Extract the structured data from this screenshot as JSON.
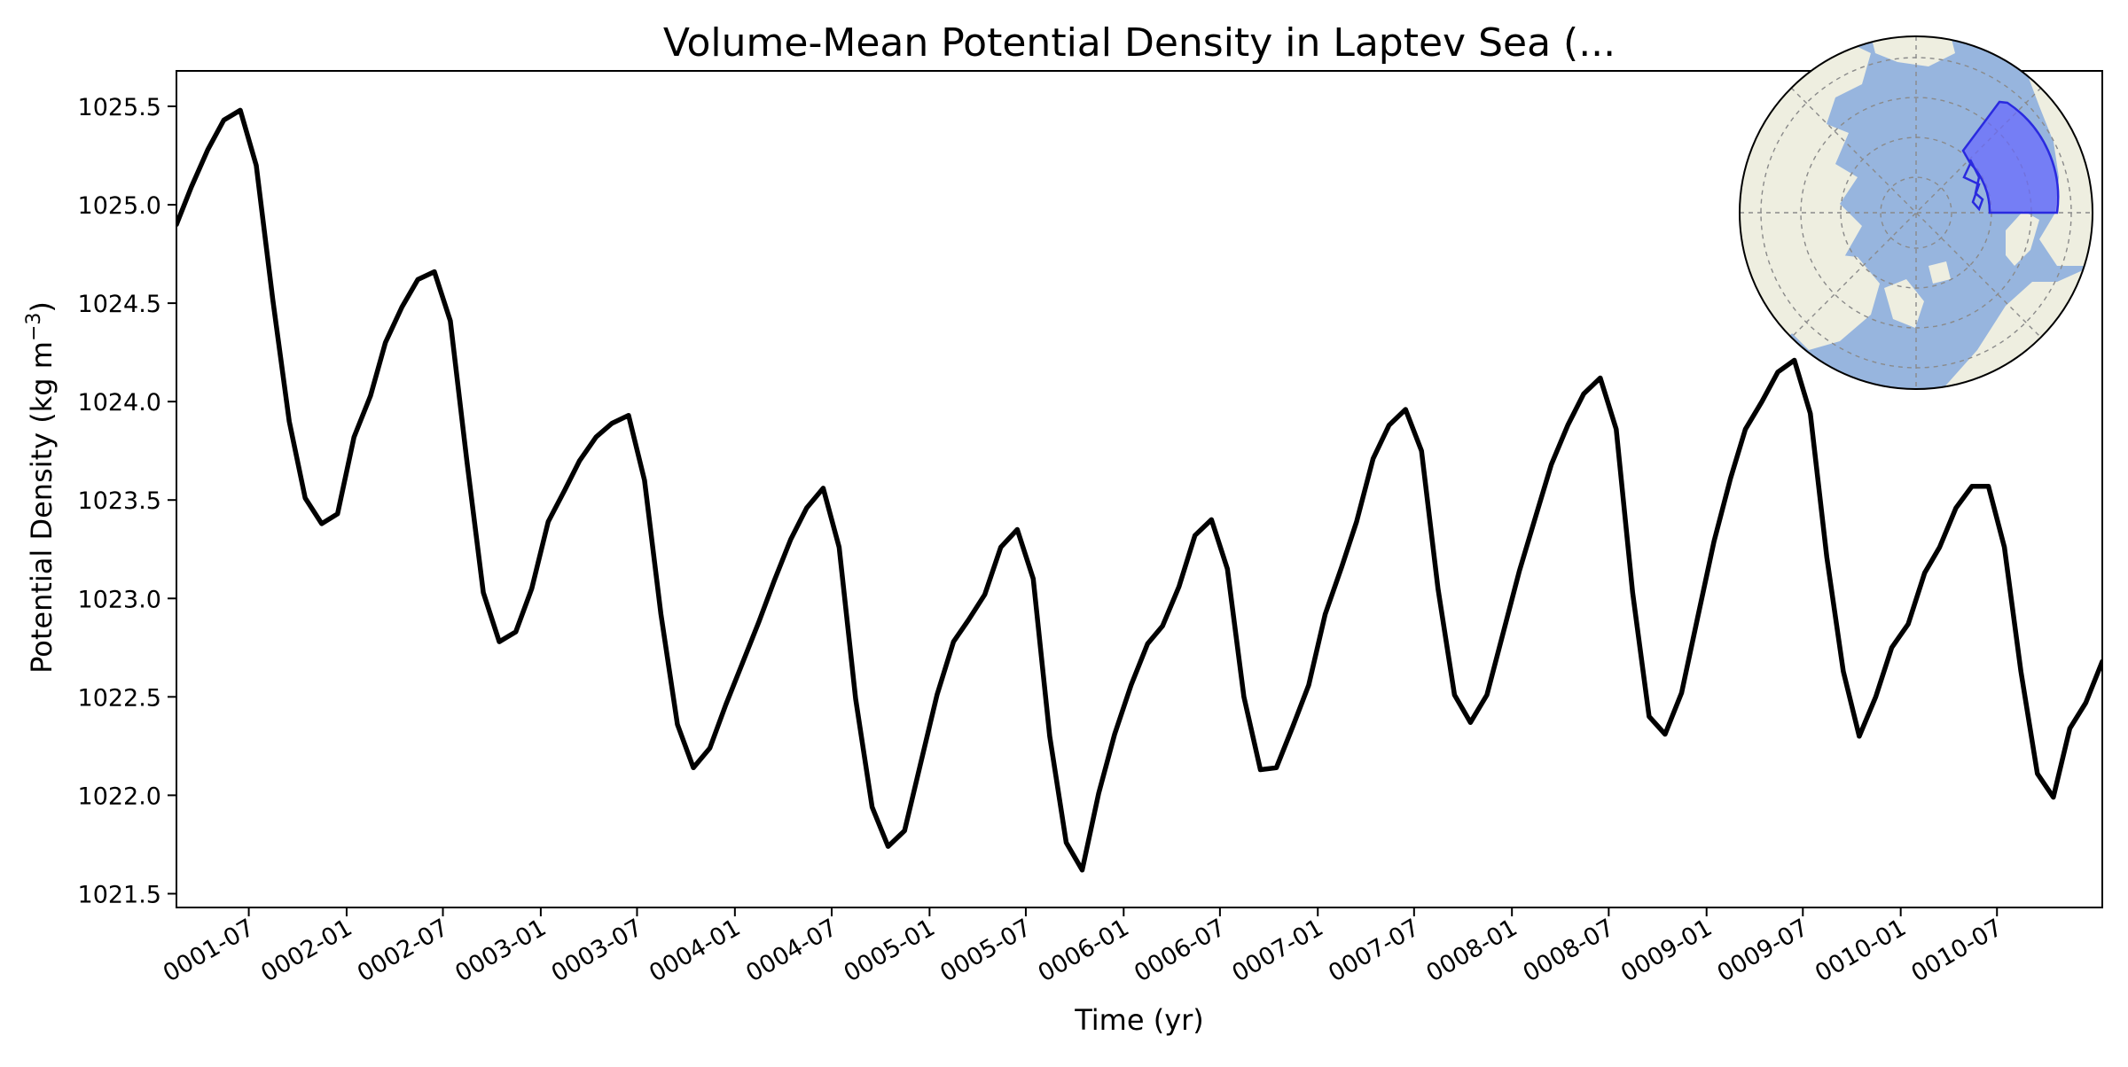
{
  "chart_data": {
    "type": "line",
    "title": "Volume-Mean Potential Density in Laptev Sea (...",
    "xlabel": "Time (yr)",
    "ylabel": "Potential Density (kg m⁻³)",
    "ylabel_base": "Potential Density (kg m",
    "ylabel_sup": "−3",
    "ylabel_close": ")",
    "ylim": [
      1021.43,
      1025.68
    ],
    "xlim": [
      "0001-02-15",
      "0011-01-15"
    ],
    "grid": false,
    "legend": "none",
    "line_color": "#000000",
    "y_ticks": [
      1021.5,
      1022.0,
      1022.5,
      1023.0,
      1023.5,
      1024.0,
      1024.5,
      1025.0,
      1025.5
    ],
    "y_tick_labels": [
      "1021.5",
      "1022.0",
      "1022.5",
      "1023.0",
      "1023.5",
      "1024.0",
      "1024.5",
      "1025.0",
      "1025.5"
    ],
    "x_ticks": [
      "0001-07-01",
      "0002-01-01",
      "0002-07-01",
      "0003-01-01",
      "0003-07-01",
      "0004-01-01",
      "0004-07-01",
      "0005-01-01",
      "0005-07-01",
      "0006-01-01",
      "0006-07-01",
      "0007-01-01",
      "0007-07-01",
      "0008-01-01",
      "0008-07-01",
      "0009-01-01",
      "0009-07-01",
      "0010-01-01",
      "0010-07-01"
    ],
    "x_tick_labels": [
      "0001-07",
      "0002-01",
      "0002-07",
      "0003-01",
      "0003-07",
      "0004-01",
      "0004-07",
      "0005-01",
      "0005-07",
      "0006-01",
      "0006-07",
      "0007-01",
      "0007-07",
      "0008-01",
      "0008-07",
      "0009-01",
      "0009-07",
      "0010-01",
      "0010-07"
    ],
    "series": [
      {
        "x": [
          "0001-02-15",
          "0001-03-15",
          "0001-04-15",
          "0001-05-15",
          "0001-06-15",
          "0001-07-15",
          "0001-08-15",
          "0001-09-15",
          "0001-10-15",
          "0001-11-15",
          "0001-12-15",
          "0002-01-15",
          "0002-02-15",
          "0002-03-15",
          "0002-04-15",
          "0002-05-15",
          "0002-06-15",
          "0002-07-15",
          "0002-08-15",
          "0002-09-15",
          "0002-10-15",
          "0002-11-15",
          "0002-12-15",
          "0003-01-15",
          "0003-02-15",
          "0003-03-15",
          "0003-04-15",
          "0003-05-15",
          "0003-06-15",
          "0003-07-15",
          "0003-08-15",
          "0003-09-15",
          "0003-10-15",
          "0003-11-15",
          "0003-12-15",
          "0004-01-15",
          "0004-02-15",
          "0004-03-15",
          "0004-04-15",
          "0004-05-15",
          "0004-06-15",
          "0004-07-15",
          "0004-08-15",
          "0004-09-15",
          "0004-10-15",
          "0004-11-15",
          "0004-12-15",
          "0005-01-15",
          "0005-02-15",
          "0005-03-15",
          "0005-04-15",
          "0005-05-15",
          "0005-06-15",
          "0005-07-15",
          "0005-08-15",
          "0005-09-15",
          "0005-10-15",
          "0005-11-15",
          "0005-12-15",
          "0006-01-15",
          "0006-02-15",
          "0006-03-15",
          "0006-04-15",
          "0006-05-15",
          "0006-06-15",
          "0006-07-15",
          "0006-08-15",
          "0006-09-15",
          "0006-10-15",
          "0006-11-15",
          "0006-12-15",
          "0007-01-15",
          "0007-02-15",
          "0007-03-15",
          "0007-04-15",
          "0007-05-15",
          "0007-06-15",
          "0007-07-15",
          "0007-08-15",
          "0007-09-15",
          "0007-10-15",
          "0007-11-15",
          "0007-12-15",
          "0008-01-15",
          "0008-02-15",
          "0008-03-15",
          "0008-04-15",
          "0008-05-15",
          "0008-06-15",
          "0008-07-15",
          "0008-08-15",
          "0008-09-15",
          "0008-10-15",
          "0008-11-15",
          "0008-12-15",
          "0009-01-15",
          "0009-02-15",
          "0009-03-15",
          "0009-04-15",
          "0009-05-15",
          "0009-06-15",
          "0009-07-15",
          "0009-08-15",
          "0009-09-15",
          "0009-10-15",
          "0009-11-15",
          "0009-12-15",
          "0010-01-15",
          "0010-02-15",
          "0010-03-15",
          "0010-04-15",
          "0010-05-15",
          "0010-06-15",
          "0010-07-15",
          "0010-08-15",
          "0010-09-15",
          "0010-10-15",
          "0010-11-15",
          "0010-12-15",
          "0011-01-15"
        ],
        "values": [
          1024.9,
          1025.09,
          1025.28,
          1025.43,
          1025.48,
          1025.2,
          1024.52,
          1023.9,
          1023.51,
          1023.38,
          1023.43,
          1023.82,
          1024.03,
          1024.3,
          1024.48,
          1024.62,
          1024.66,
          1024.41,
          1023.7,
          1023.03,
          1022.78,
          1022.83,
          1023.05,
          1023.39,
          1023.55,
          1023.7,
          1023.82,
          1023.89,
          1023.93,
          1023.6,
          1022.92,
          1022.36,
          1022.14,
          1022.24,
          1022.46,
          1022.67,
          1022.88,
          1023.09,
          1023.3,
          1023.46,
          1023.56,
          1023.26,
          1022.49,
          1021.94,
          1021.74,
          1021.82,
          1022.16,
          1022.51,
          1022.78,
          1022.89,
          1023.02,
          1023.26,
          1023.35,
          1023.1,
          1022.3,
          1021.76,
          1021.62,
          1022.01,
          1022.31,
          1022.56,
          1022.77,
          1022.86,
          1023.06,
          1023.32,
          1023.4,
          1023.15,
          1022.5,
          1022.13,
          1022.14,
          1022.35,
          1022.56,
          1022.92,
          1023.16,
          1023.39,
          1023.71,
          1023.88,
          1023.96,
          1023.75,
          1023.05,
          1022.51,
          1022.37,
          1022.51,
          1022.82,
          1023.14,
          1023.42,
          1023.68,
          1023.88,
          1024.04,
          1024.12,
          1023.86,
          1023.03,
          1022.4,
          1022.31,
          1022.52,
          1022.9,
          1023.29,
          1023.61,
          1023.86,
          1024.0,
          1024.15,
          1024.21,
          1023.94,
          1023.21,
          1022.63,
          1022.3,
          1022.5,
          1022.75,
          1022.87,
          1023.13,
          1023.26,
          1023.46,
          1023.57,
          1023.57,
          1023.26,
          1022.63,
          1022.11,
          1021.99,
          1022.34,
          1022.47,
          1022.68
        ]
      }
    ]
  },
  "inset_map": {
    "land_color": "#eeeee0",
    "ocean_color": "#97b5de",
    "region_fill": "#6666ff",
    "region_edge": "#2a2adf",
    "grid_color": "#8a8a8a"
  }
}
